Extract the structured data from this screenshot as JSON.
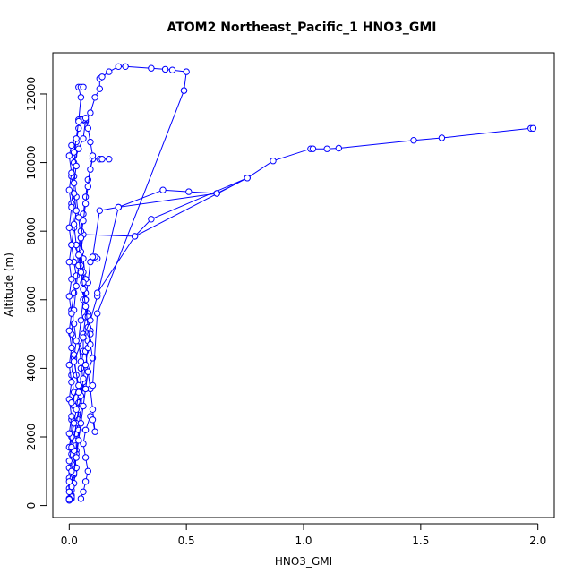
{
  "chart_data": {
    "type": "line",
    "title": "ATOM2 Northeast_Pacific_1 HNO3_GMI",
    "xlabel": "HNO3_GMI",
    "ylabel": "Altitude (m)",
    "xlim": [
      -0.07,
      2.07
    ],
    "ylim": [
      -350,
      13200
    ],
    "x_ticks": [
      0.0,
      0.5,
      1.0,
      1.5,
      2.0
    ],
    "x_tick_labels": [
      "0.0",
      "0.5",
      "1.0",
      "1.5",
      "2.0"
    ],
    "y_ticks": [
      0,
      2000,
      4000,
      6000,
      8000,
      10000,
      12000
    ],
    "y_tick_labels": [
      "0",
      "2000",
      "4000",
      "6000",
      "8000",
      "10000",
      "12000"
    ],
    "grid": false,
    "legend": "none",
    "colors": {
      "series": "#0000ff",
      "axis": "#000000"
    },
    "series": [
      {
        "points": [
          [
            0.01,
            200
          ],
          [
            0.01,
            600
          ],
          [
            0.02,
            1000
          ],
          [
            0.03,
            1600
          ],
          [
            0.03,
            2100
          ],
          [
            0.04,
            2500
          ],
          [
            0.04,
            3000
          ],
          [
            0.05,
            3500
          ],
          [
            0.05,
            4000
          ],
          [
            0.06,
            4500
          ],
          [
            0.06,
            5000
          ],
          [
            0.07,
            5500
          ],
          [
            0.07,
            6000
          ],
          [
            0.08,
            6500
          ],
          [
            0.09,
            7100
          ],
          [
            0.12,
            7200
          ],
          [
            0.11,
            7250
          ],
          [
            0.1,
            7250
          ],
          [
            0.13,
            8600
          ],
          [
            0.21,
            8700
          ],
          [
            0.4,
            9200
          ],
          [
            0.51,
            9150
          ],
          [
            0.63,
            9100
          ]
        ]
      },
      {
        "points": [
          [
            0.01,
            300
          ],
          [
            0.02,
            900
          ],
          [
            0.03,
            1500
          ],
          [
            0.04,
            2200
          ],
          [
            0.05,
            2900
          ],
          [
            0.06,
            3600
          ],
          [
            0.05,
            4200
          ],
          [
            0.04,
            4800
          ],
          [
            0.05,
            5400
          ],
          [
            0.06,
            6000
          ],
          [
            0.07,
            6600
          ],
          [
            0.06,
            7200
          ],
          [
            0.05,
            7800
          ],
          [
            0.04,
            8400
          ],
          [
            0.03,
            9000
          ],
          [
            0.02,
            9600
          ],
          [
            0.02,
            10200
          ],
          [
            0.03,
            10600
          ],
          [
            0.04,
            11000
          ],
          [
            0.05,
            11250
          ],
          [
            0.07,
            11200
          ],
          [
            0.09,
            11450
          ],
          [
            0.11,
            11900
          ],
          [
            0.13,
            12150
          ],
          [
            0.13,
            12450
          ],
          [
            0.14,
            12500
          ],
          [
            0.17,
            12650
          ],
          [
            0.21,
            12800
          ],
          [
            0.24,
            12800
          ],
          [
            0.35,
            12750
          ],
          [
            0.41,
            12720
          ],
          [
            0.44,
            12700
          ],
          [
            0.5,
            12650
          ],
          [
            0.49,
            12100
          ]
        ]
      },
      {
        "points": [
          [
            0.05,
            200
          ],
          [
            0.06,
            400
          ],
          [
            0.07,
            700
          ],
          [
            0.08,
            1000
          ],
          [
            0.07,
            1400
          ],
          [
            0.06,
            1800
          ],
          [
            0.07,
            2200
          ],
          [
            0.09,
            2600
          ],
          [
            0.1,
            2500
          ],
          [
            0.11,
            2150
          ],
          [
            0.1,
            2800
          ],
          [
            0.09,
            3400
          ],
          [
            0.08,
            3900
          ],
          [
            0.07,
            4500
          ],
          [
            0.08,
            4800
          ],
          [
            0.09,
            5100
          ],
          [
            0.08,
            5600
          ],
          [
            0.07,
            6200
          ],
          [
            0.06,
            6800
          ],
          [
            0.05,
            7400
          ],
          [
            0.06,
            7900
          ],
          [
            0.28,
            7850
          ],
          [
            0.35,
            8350
          ],
          [
            0.76,
            9550
          ],
          [
            0.87,
            10050
          ],
          [
            1.03,
            10400
          ],
          [
            1.04,
            10400
          ],
          [
            1.1,
            10400
          ],
          [
            1.15,
            10420
          ],
          [
            1.47,
            10650
          ],
          [
            1.59,
            10720
          ],
          [
            1.97,
            11000
          ],
          [
            1.98,
            11000
          ]
        ]
      },
      {
        "points": [
          [
            0.0,
            200
          ],
          [
            0.0,
            500
          ],
          [
            0.01,
            900
          ],
          [
            0.01,
            1300
          ],
          [
            0.0,
            1700
          ],
          [
            0.01,
            2100
          ],
          [
            0.01,
            2500
          ],
          [
            0.02,
            2900
          ],
          [
            0.02,
            3300
          ],
          [
            0.01,
            3800
          ],
          [
            0.02,
            4300
          ],
          [
            0.03,
            4800
          ],
          [
            0.02,
            5300
          ],
          [
            0.01,
            5700
          ],
          [
            0.02,
            6200
          ],
          [
            0.03,
            6700
          ],
          [
            0.02,
            7100
          ],
          [
            0.01,
            7600
          ],
          [
            0.02,
            8100
          ],
          [
            0.03,
            8600
          ],
          [
            0.02,
            9100
          ],
          [
            0.01,
            9600
          ],
          [
            0.02,
            10000
          ],
          [
            0.04,
            10400
          ],
          [
            0.06,
            10700
          ],
          [
            0.07,
            11250
          ],
          [
            0.06,
            11250
          ],
          [
            0.05,
            11250
          ],
          [
            0.04,
            11250
          ]
        ]
      },
      {
        "points": [
          [
            0.0,
            150
          ],
          [
            0.01,
            450
          ],
          [
            0.0,
            800
          ],
          [
            0.0,
            1100
          ],
          [
            0.01,
            1500
          ],
          [
            0.02,
            1900
          ],
          [
            0.03,
            2400
          ],
          [
            0.04,
            2800
          ],
          [
            0.05,
            3200
          ],
          [
            0.06,
            3700
          ],
          [
            0.07,
            4100
          ],
          [
            0.08,
            4600
          ],
          [
            0.09,
            5000
          ],
          [
            0.08,
            5500
          ],
          [
            0.07,
            6000
          ],
          [
            0.06,
            6500
          ],
          [
            0.05,
            7000
          ],
          [
            0.04,
            7500
          ],
          [
            0.05,
            8000
          ],
          [
            0.06,
            8500
          ],
          [
            0.07,
            9000
          ],
          [
            0.08,
            9500
          ],
          [
            0.1,
            10100
          ],
          [
            0.13,
            10100
          ],
          [
            0.14,
            10100
          ],
          [
            0.17,
            10100
          ]
        ]
      },
      {
        "points": [
          [
            0.01,
            250
          ],
          [
            0.02,
            650
          ],
          [
            0.03,
            1100
          ],
          [
            0.02,
            1600
          ],
          [
            0.01,
            2000
          ],
          [
            0.02,
            2400
          ],
          [
            0.03,
            2800
          ],
          [
            0.04,
            3300
          ],
          [
            0.03,
            3800
          ],
          [
            0.02,
            4400
          ],
          [
            0.01,
            5000
          ],
          [
            0.02,
            5700
          ],
          [
            0.03,
            6400
          ],
          [
            0.04,
            7000
          ],
          [
            0.03,
            7600
          ],
          [
            0.02,
            8200
          ],
          [
            0.01,
            8800
          ],
          [
            0.02,
            9400
          ],
          [
            0.03,
            9900
          ],
          [
            0.02,
            10300
          ],
          [
            0.03,
            10700
          ],
          [
            0.04,
            11200
          ],
          [
            0.05,
            11900
          ],
          [
            0.04,
            12200
          ],
          [
            0.05,
            12200
          ],
          [
            0.06,
            12200
          ]
        ]
      },
      {
        "points": [
          [
            0.0,
            200
          ],
          [
            0.01,
            550
          ],
          [
            0.02,
            950
          ],
          [
            0.03,
            1400
          ],
          [
            0.04,
            1900
          ],
          [
            0.05,
            2400
          ],
          [
            0.06,
            2900
          ],
          [
            0.07,
            3400
          ],
          [
            0.08,
            3900
          ],
          [
            0.1,
            4300
          ],
          [
            0.09,
            4700
          ],
          [
            0.08,
            5200
          ],
          [
            0.07,
            5800
          ],
          [
            0.06,
            6300
          ],
          [
            0.05,
            6800
          ],
          [
            0.04,
            7300
          ],
          [
            0.05,
            7800
          ],
          [
            0.06,
            8300
          ],
          [
            0.07,
            8800
          ],
          [
            0.08,
            9300
          ],
          [
            0.09,
            9800
          ],
          [
            0.1,
            10200
          ],
          [
            0.09,
            10600
          ],
          [
            0.08,
            11000
          ],
          [
            0.07,
            11300
          ]
        ]
      },
      {
        "points": [
          [
            0.0,
            180
          ],
          [
            0.0,
            400
          ],
          [
            0.0,
            700
          ],
          [
            0.01,
            1000
          ],
          [
            0.0,
            1300
          ],
          [
            0.01,
            1700
          ],
          [
            0.0,
            2100
          ],
          [
            0.01,
            2600
          ],
          [
            0.0,
            3100
          ],
          [
            0.01,
            3600
          ],
          [
            0.0,
            4100
          ],
          [
            0.01,
            4600
          ],
          [
            0.0,
            5100
          ],
          [
            0.01,
            5600
          ],
          [
            0.0,
            6100
          ],
          [
            0.01,
            6600
          ],
          [
            0.0,
            7100
          ],
          [
            0.01,
            7600
          ],
          [
            0.0,
            8100
          ],
          [
            0.01,
            8700
          ],
          [
            0.0,
            9200
          ],
          [
            0.01,
            9700
          ],
          [
            0.0,
            10200
          ],
          [
            0.01,
            10500
          ]
        ]
      },
      {
        "points": [
          [
            0.1,
            3500
          ],
          [
            0.12,
            5600
          ],
          [
            0.49,
            12100
          ]
        ]
      },
      {
        "points": [
          [
            0.01,
            3000
          ],
          [
            0.04,
            3500
          ],
          [
            0.02,
            4200
          ],
          [
            0.06,
            4900
          ],
          [
            0.09,
            5400
          ],
          [
            0.12,
            6100
          ],
          [
            0.21,
            8700
          ],
          [
            0.63,
            9100
          ],
          [
            0.76,
            9550
          ],
          [
            0.28,
            7850
          ],
          [
            0.12,
            6200
          ]
        ]
      }
    ]
  }
}
